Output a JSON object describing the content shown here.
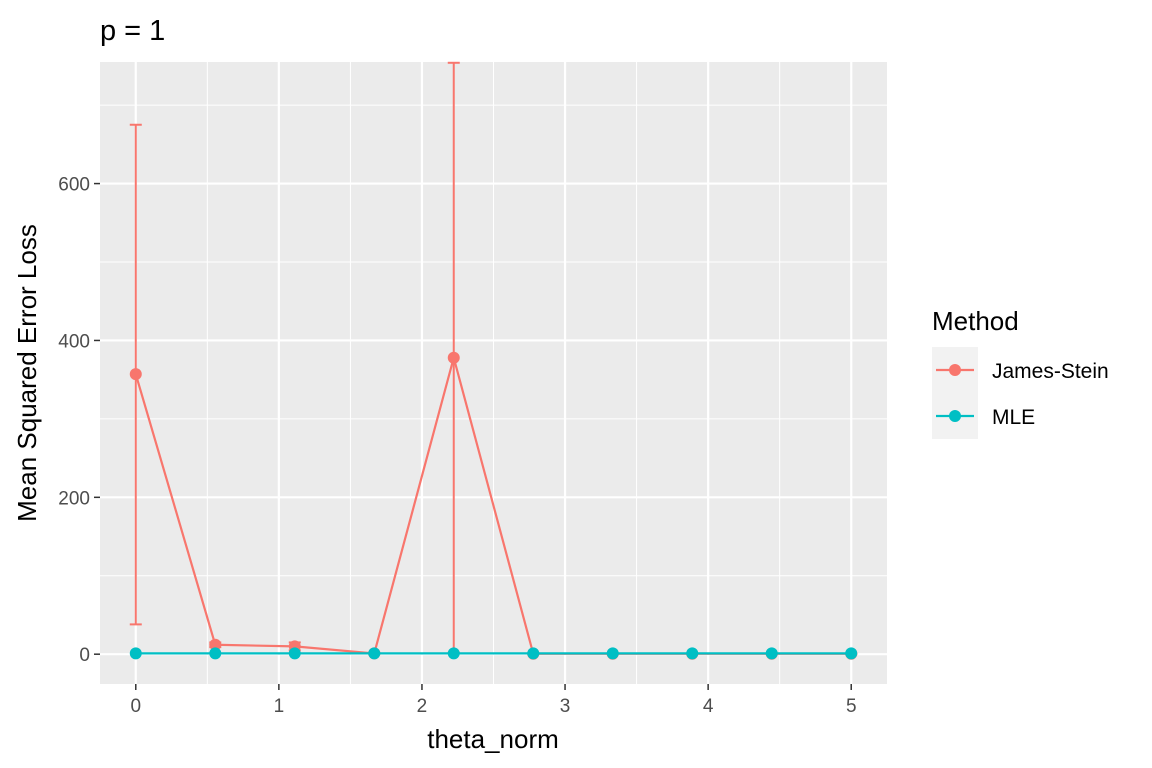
{
  "chart_data": {
    "type": "line",
    "title": "p = 1",
    "xlabel": "theta_norm",
    "ylabel": "Mean Squared Error Loss",
    "xlim": [
      -0.25,
      5.25
    ],
    "ylim": [
      -38,
      755
    ],
    "x_ticks": [
      0,
      1,
      2,
      3,
      4,
      5
    ],
    "y_ticks": [
      0,
      200,
      400,
      600
    ],
    "grid": true,
    "legend": {
      "title": "Method",
      "position": "right"
    },
    "x": [
      0,
      0.5556,
      1.1111,
      1.6667,
      2.2222,
      2.7778,
      3.3333,
      3.8889,
      4.4444,
      5.0
    ],
    "series": [
      {
        "name": "James-Stein",
        "color": "#F8766D",
        "values": [
          357,
          12,
          10,
          1,
          378,
          0.5,
          0.5,
          0.5,
          0.5,
          0.5
        ],
        "error_low": [
          38,
          9,
          5,
          0,
          2,
          0,
          0,
          0,
          0,
          0
        ],
        "error_high": [
          675,
          15,
          15,
          2,
          754,
          1,
          1,
          1,
          1,
          1
        ]
      },
      {
        "name": "MLE",
        "color": "#00BFC4",
        "values": [
          1,
          1,
          1,
          1,
          1,
          1,
          1,
          1,
          1,
          1
        ],
        "error_low": [
          1,
          1,
          1,
          1,
          1,
          1,
          1,
          1,
          1,
          1
        ],
        "error_high": [
          1,
          1,
          1,
          1,
          1,
          1,
          1,
          1,
          1,
          1
        ]
      }
    ]
  }
}
